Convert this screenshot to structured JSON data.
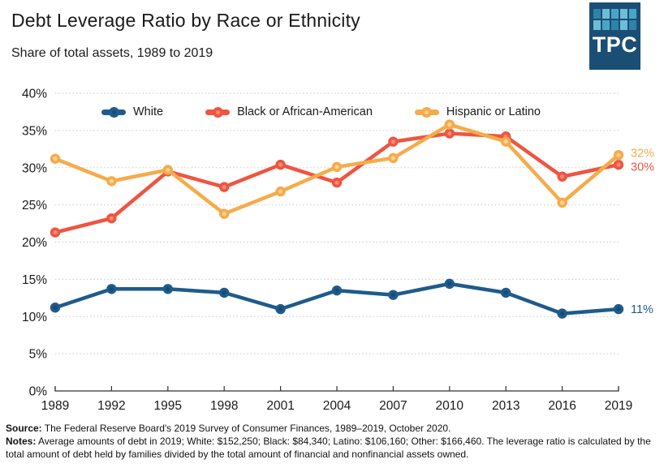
{
  "header": {
    "title": "Debt Leverage Ratio by Race or Ethnicity",
    "subtitle": "Share of total assets, 1989 to 2019"
  },
  "logo": {
    "word": "TPC",
    "background": "#1b4e74",
    "tiles": [
      "#2e84a8",
      "#6fbcd6",
      "#49a5c5",
      "#6fbcd6",
      "#49a5c5",
      "#6fbcd6",
      "#49a5c5",
      "#2e84a8",
      "#6fbcd6",
      "#2e84a8"
    ]
  },
  "chart_data": {
    "type": "line",
    "title": "Debt Leverage Ratio by Race or Ethnicity",
    "subtitle": "Share of total assets, 1989 to 2019",
    "categories": [
      "1989",
      "1992",
      "1995",
      "1998",
      "2001",
      "2004",
      "2007",
      "2010",
      "2013",
      "2016",
      "2019"
    ],
    "series": [
      {
        "name": "White",
        "color": "#1f5b8c",
        "center_dot_color": "#174a74",
        "values": [
          11.2,
          13.7,
          13.7,
          13.2,
          11.0,
          13.5,
          12.9,
          14.4,
          13.2,
          10.4,
          11.0
        ],
        "end_label": "11%"
      },
      {
        "name": "Black or African-American",
        "color": "#ee5540",
        "center_dot_color": "#f58b76",
        "values": [
          21.3,
          23.2,
          29.5,
          27.4,
          30.4,
          28.0,
          33.5,
          34.6,
          34.2,
          28.8,
          30.4
        ],
        "end_label": "30%"
      },
      {
        "name": "Hispanic or Latino",
        "color": "#f6ab49",
        "center_dot_color": "#fbd39a",
        "values": [
          31.2,
          28.2,
          29.7,
          23.8,
          26.8,
          30.1,
          31.3,
          35.8,
          33.5,
          25.3,
          31.7
        ],
        "end_label": "32%"
      }
    ],
    "ylim": [
      0,
      40
    ],
    "ytick_step": 5,
    "ytick_suffix": "%",
    "xlabel": "",
    "ylabel": "",
    "grid": "horizontal-dotted",
    "legend_position": "top-inside",
    "axis_color": "#333333",
    "grid_color": "#c9c9c9",
    "tick_label_color": "#1a1a1a"
  },
  "footer": {
    "source_label": "Source:",
    "source_text": " The Federal Reserve Board's 2019 Survey of Consumer Finances, 1989–2019, October 2020.",
    "notes_label": "Notes:",
    "notes_text": " Average amounts of debt in 2019; White: $152,250; Black: $84,340; Latino: $106,160; Other: $166,460. The leverage ratio is calculated by the total amount of debt held by families divided by the total amount of financial and nonfinancial assets owned."
  }
}
